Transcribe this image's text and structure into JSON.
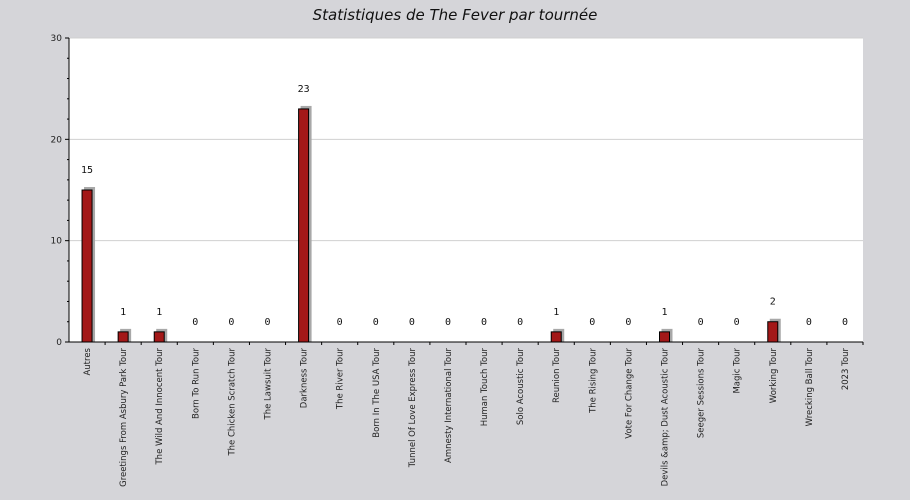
{
  "chart_data": {
    "type": "bar",
    "title": "Statistiques de The Fever par tournée",
    "xlabel": "",
    "ylabel": "",
    "ylim": [
      0,
      30
    ],
    "yticks": [
      0,
      10,
      20,
      30
    ],
    "grid": true,
    "bar_color": "#a31818",
    "shadow_color": "#a8a8a8",
    "categories": [
      "Autres",
      "Greetings From Asbury Park Tour",
      "The Wild And Innocent Tour",
      "Born To Run Tour",
      "The Chicken Scratch Tour",
      "The Lawsuit Tour",
      "Darkness Tour",
      "The River Tour",
      "Born In The USA Tour",
      "Tunnel Of Love Express Tour",
      "Amnesty International Tour",
      "Human Touch Tour",
      "Solo Acoustic Tour",
      "Reunion Tour",
      "The Rising Tour",
      "Vote For Change Tour",
      "Devils &amp; Dust Acoustic Tour",
      "Seeger Sessions Tour",
      "Magic Tour",
      "Working Tour",
      "Wrecking Ball Tour",
      "2023 Tour"
    ],
    "values": [
      15,
      1,
      1,
      0,
      0,
      0,
      23,
      0,
      0,
      0,
      0,
      0,
      0,
      1,
      0,
      0,
      1,
      0,
      0,
      2,
      0,
      0
    ],
    "value_labels": [
      "15",
      "1",
      "1",
      "0",
      "0",
      "0",
      "23",
      "0",
      "0",
      "0",
      "0",
      "0",
      "0",
      "1",
      "0",
      "0",
      "1",
      "0",
      "0",
      "2",
      "0",
      "0"
    ]
  }
}
